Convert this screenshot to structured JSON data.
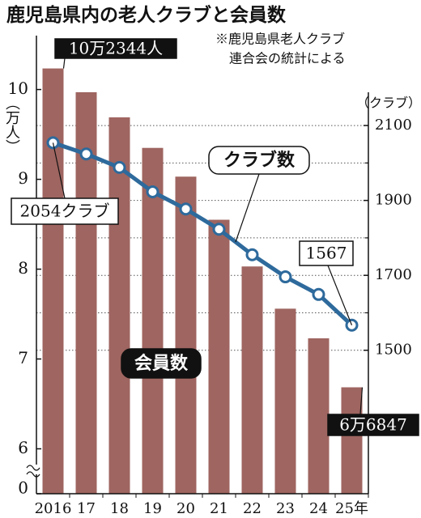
{
  "chart_data": {
    "type": "combo",
    "title": "鹿児島県内の老人クラブと会員数",
    "note": [
      "※鹿児島県老人クラブ",
      "連合会の統計による"
    ],
    "ylabel": "（万人）",
    "y2label": "（クラブ）",
    "categories": [
      "2016",
      "17",
      "18",
      "19",
      "20",
      "21",
      "22",
      "23",
      "24",
      "25年"
    ],
    "series": [
      {
        "name": "会員数",
        "type": "bar",
        "color": "#9f6560",
        "values": [
          10.2344,
          9.97,
          9.69,
          9.35,
          9.03,
          8.55,
          8.03,
          7.56,
          7.23,
          6.6847
        ],
        "value_labels": [
          "10万2344人",
          null,
          null,
          null,
          null,
          null,
          null,
          null,
          null,
          "6万6847"
        ]
      },
      {
        "name": "クラブ数",
        "type": "line",
        "axis": "y2",
        "color": "#2e6a9c",
        "values": [
          2054,
          2024,
          1988,
          1923,
          1877,
          1823,
          1755,
          1696,
          1649,
          1567
        ],
        "value_labels": [
          "2054クラブ",
          null,
          null,
          null,
          null,
          null,
          null,
          null,
          null,
          "1567"
        ]
      }
    ],
    "ylim": [
      5.5,
      10.6
    ],
    "yticks": [
      0,
      6,
      7,
      8,
      9,
      10
    ],
    "y_axis_break": true,
    "y2lim": [
      1117,
      2340
    ],
    "y2ticks": [
      1500,
      1700,
      1900,
      2100
    ],
    "y2minorticks": [
      1600,
      1800,
      2000
    ],
    "grid": true
  }
}
